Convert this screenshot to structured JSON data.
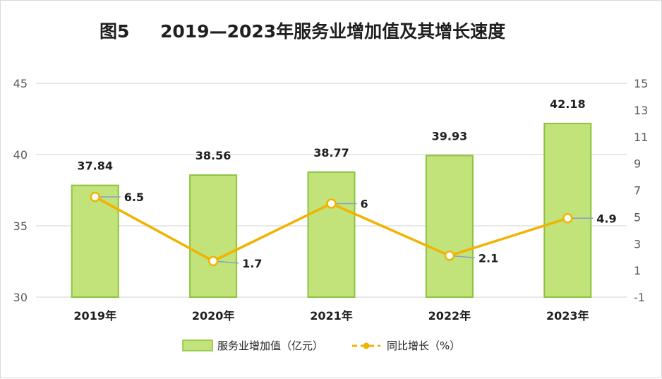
{
  "chart_data": {
    "type": "bar+line",
    "title_prefix": "图5",
    "title_main": "2019—2023年服务业增加值及其增长速度",
    "categories": [
      "2019年",
      "2020年",
      "2021年",
      "2022年",
      "2023年"
    ],
    "series": [
      {
        "name": "服务业增加值（亿元）",
        "type": "bar",
        "axis": "left",
        "values": [
          37.84,
          38.56,
          38.77,
          39.93,
          42.18
        ]
      },
      {
        "name": "同比增长（%）",
        "type": "line",
        "axis": "right",
        "values": [
          6.5,
          1.7,
          6,
          2.1,
          4.9
        ]
      }
    ],
    "left_axis": {
      "min": 30,
      "max": 45,
      "ticks": [
        "30",
        "35",
        "40",
        "45"
      ]
    },
    "right_axis": {
      "min": -1,
      "max": 15,
      "ticks": [
        "-1",
        "1",
        "3",
        "5",
        "7",
        "9",
        "11",
        "13",
        "15"
      ]
    },
    "bar_labels": [
      "37.84",
      "38.56",
      "38.77",
      "39.93",
      "42.18"
    ],
    "line_labels": [
      "6.5",
      "1.7",
      "6",
      "2.1",
      "4.9"
    ],
    "legend": [
      "服务业增加值（亿元）",
      "同比增长（%）"
    ],
    "colors": {
      "bar_fill": "#c2e27a",
      "bar_stroke": "#8cc43f",
      "line": "#f0b400",
      "leader": "#8aa0c8",
      "grid": "#d9d9d9"
    }
  }
}
